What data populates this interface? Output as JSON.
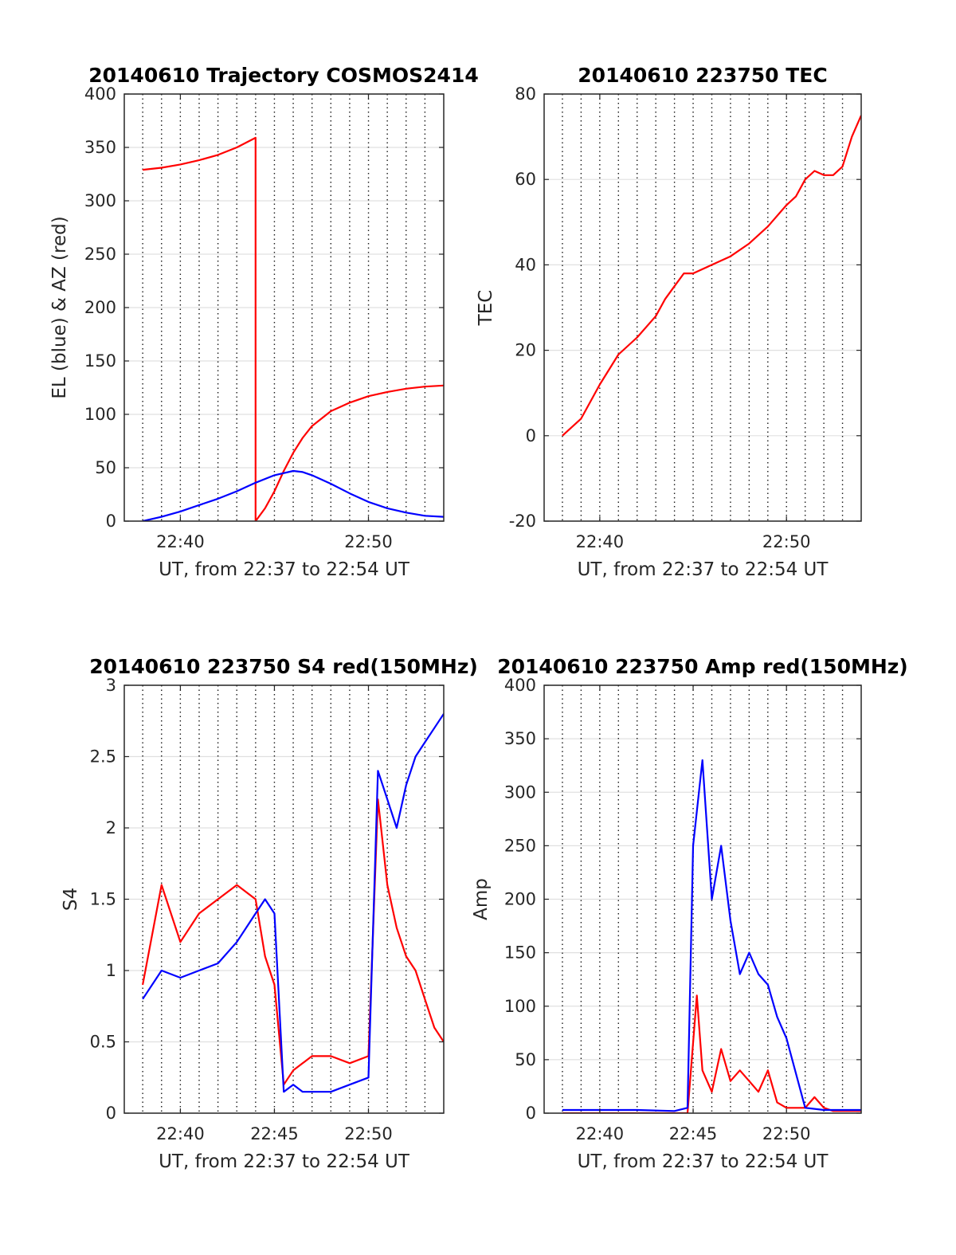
{
  "chart_data": [
    {
      "type": "line",
      "title": "20140610 Trajectory COSMOS2414",
      "xlabel": "UT, from 22:37 to 22:54 UT",
      "ylabel": "EL (blue) & AZ (red)",
      "xlim": [
        22.617,
        22.9
      ],
      "ylim": [
        0,
        400
      ],
      "xticks": [
        {
          "value": 22.6667,
          "label": "22:40"
        },
        {
          "value": 22.8333,
          "label": "22:50"
        }
      ],
      "yticks": [
        0,
        50,
        100,
        150,
        200,
        250,
        300,
        350,
        400
      ],
      "grid": "vertical dotted every minute, horizontal light",
      "series": [
        {
          "color": "#ff0000",
          "x": [
            22.6333,
            22.65,
            22.6667,
            22.6833,
            22.7,
            22.7167,
            22.7333,
            22.7333,
            22.7417,
            22.75,
            22.7583,
            22.7667,
            22.775,
            22.7833,
            22.8,
            22.8167,
            22.8333,
            22.85,
            22.8667,
            22.8833,
            22.9
          ],
          "values": [
            329,
            331,
            334,
            338,
            343,
            350,
            359,
            0,
            12,
            28,
            47,
            64,
            78,
            89,
            103,
            111,
            117,
            121,
            124,
            126,
            127
          ]
        },
        {
          "color": "#0000ff",
          "x": [
            22.6333,
            22.65,
            22.6667,
            22.6833,
            22.7,
            22.7167,
            22.7333,
            22.75,
            22.7667,
            22.775,
            22.7833,
            22.8,
            22.8167,
            22.8333,
            22.85,
            22.8667,
            22.8833,
            22.9
          ],
          "values": [
            0,
            4,
            9,
            15,
            21,
            28,
            36,
            43,
            47,
            46,
            43,
            35,
            26,
            18,
            12,
            8,
            5,
            4
          ]
        }
      ]
    },
    {
      "type": "line",
      "title": "20140610 223750 TEC",
      "xlabel": "UT, from 22:37 to 22:54 UT",
      "ylabel": "TEC",
      "xlim": [
        22.617,
        22.9
      ],
      "ylim": [
        -20,
        80
      ],
      "xticks": [
        {
          "value": 22.6667,
          "label": "22:40"
        },
        {
          "value": 22.8333,
          "label": "22:50"
        }
      ],
      "yticks": [
        -20,
        0,
        20,
        40,
        60,
        80
      ],
      "grid": "vertical dotted every minute, horizontal light",
      "series": [
        {
          "color": "#ff0000",
          "x": [
            22.6333,
            22.65,
            22.6667,
            22.6833,
            22.7,
            22.7167,
            22.725,
            22.7333,
            22.7417,
            22.75,
            22.7667,
            22.7833,
            22.8,
            22.8167,
            22.8333,
            22.8417,
            22.85,
            22.8583,
            22.8667,
            22.875,
            22.8833,
            22.8917,
            22.9
          ],
          "values": [
            0,
            4,
            12,
            19,
            23,
            28,
            32,
            35,
            38,
            38,
            40,
            42,
            45,
            49,
            54,
            56,
            60,
            62,
            61,
            61,
            63,
            70,
            75
          ]
        }
      ]
    },
    {
      "type": "line",
      "title": "20140610 223750 S4 red(150MHz)",
      "xlabel": "UT, from 22:37 to 22:54 UT",
      "ylabel": "S4",
      "xlim": [
        22.617,
        22.9
      ],
      "ylim": [
        0,
        3
      ],
      "xticks": [
        {
          "value": 22.6667,
          "label": "22:40"
        },
        {
          "value": 22.75,
          "label": "22:45"
        },
        {
          "value": 22.8333,
          "label": "22:50"
        }
      ],
      "yticks": [
        0,
        0.5,
        1,
        1.5,
        2,
        2.5,
        3
      ],
      "grid": "vertical dotted every minute, horizontal light",
      "series": [
        {
          "color": "#ff0000",
          "x": [
            22.6333,
            22.65,
            22.6667,
            22.6833,
            22.7,
            22.7167,
            22.7333,
            22.7417,
            22.75,
            22.7583,
            22.7667,
            22.775,
            22.7833,
            22.8,
            22.8167,
            22.8333,
            22.8417,
            22.85,
            22.8583,
            22.8667,
            22.875,
            22.8833,
            22.8917,
            22.9
          ],
          "values": [
            0.9,
            1.6,
            1.2,
            1.4,
            1.5,
            1.6,
            1.5,
            1.1,
            0.9,
            0.2,
            0.3,
            0.35,
            0.4,
            0.4,
            0.35,
            0.4,
            2.2,
            1.6,
            1.3,
            1.1,
            1.0,
            0.8,
            0.6,
            0.5
          ]
        },
        {
          "color": "#0000ff",
          "x": [
            22.6333,
            22.65,
            22.6667,
            22.6833,
            22.7,
            22.7167,
            22.7333,
            22.7417,
            22.75,
            22.7583,
            22.7667,
            22.775,
            22.7833,
            22.8,
            22.8167,
            22.8333,
            22.8417,
            22.85,
            22.8583,
            22.8667,
            22.875,
            22.8833,
            22.8917,
            22.9
          ],
          "values": [
            0.8,
            1.0,
            0.95,
            1.0,
            1.05,
            1.2,
            1.4,
            1.5,
            1.4,
            0.15,
            0.2,
            0.15,
            0.15,
            0.15,
            0.2,
            0.25,
            2.4,
            2.2,
            2.0,
            2.3,
            2.5,
            2.6,
            2.7,
            2.8
          ]
        }
      ]
    },
    {
      "type": "line",
      "title": "20140610 223750 Amp red(150MHz)",
      "xlabel": "UT, from 22:37 to 22:54 UT",
      "ylabel": "Amp",
      "xlim": [
        22.617,
        22.9
      ],
      "ylim": [
        0,
        400
      ],
      "xticks": [
        {
          "value": 22.6667,
          "label": "22:40"
        },
        {
          "value": 22.75,
          "label": "22:45"
        },
        {
          "value": 22.8333,
          "label": "22:50"
        }
      ],
      "yticks": [
        0,
        50,
        100,
        150,
        200,
        250,
        300,
        350,
        400
      ],
      "grid": "vertical dotted every minute, horizontal light",
      "series": [
        {
          "color": "#ff0000",
          "x": [
            22.6333,
            22.7,
            22.745,
            22.7533,
            22.7583,
            22.7667,
            22.775,
            22.7833,
            22.7917,
            22.8,
            22.8083,
            22.8167,
            22.825,
            22.8333,
            22.85,
            22.8583,
            22.8667,
            22.875,
            22.9
          ],
          "values": [
            0,
            0,
            0,
            110,
            40,
            20,
            60,
            30,
            40,
            30,
            20,
            40,
            10,
            5,
            5,
            15,
            5,
            2,
            2
          ]
        },
        {
          "color": "#0000ff",
          "x": [
            22.6333,
            22.6667,
            22.7,
            22.7333,
            22.745,
            22.75,
            22.7583,
            22.7667,
            22.775,
            22.7833,
            22.7917,
            22.8,
            22.8083,
            22.8167,
            22.825,
            22.8333,
            22.85,
            22.8667,
            22.9
          ],
          "values": [
            3,
            3,
            3,
            2,
            5,
            250,
            330,
            200,
            250,
            180,
            130,
            150,
            130,
            120,
            90,
            70,
            5,
            3,
            3
          ]
        }
      ]
    }
  ]
}
